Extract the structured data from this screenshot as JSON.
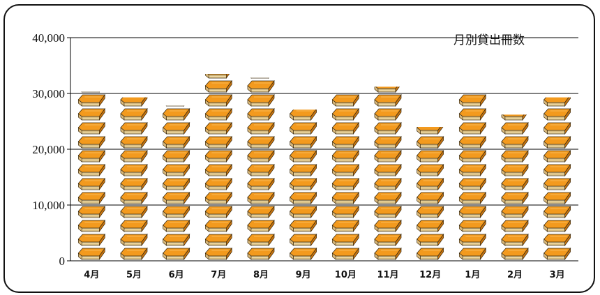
{
  "chart_data": {
    "type": "bar",
    "title": "月別貸出冊数",
    "xlabel": "",
    "ylabel": "",
    "categories": [
      "4月",
      "5月",
      "6月",
      "7月",
      "8月",
      "9月",
      "10月",
      "11月",
      "12月",
      "1月",
      "2月",
      "3月"
    ],
    "values": [
      30300,
      29300,
      27800,
      33500,
      32800,
      27100,
      30000,
      31200,
      24000,
      29900,
      26200,
      29300
    ],
    "ylim": [
      0,
      40000
    ],
    "yticks": [
      "0",
      "10,000",
      "20,000",
      "30,000",
      "40,000"
    ],
    "ytick_values": [
      0,
      10000,
      20000,
      30000,
      40000
    ],
    "grid": true,
    "legend": "none",
    "colors": {
      "book_cover": "#F39A1E",
      "book_pages": "#F3DEA8",
      "book_outline": "#3A2A10",
      "gridline": "#000000"
    }
  }
}
